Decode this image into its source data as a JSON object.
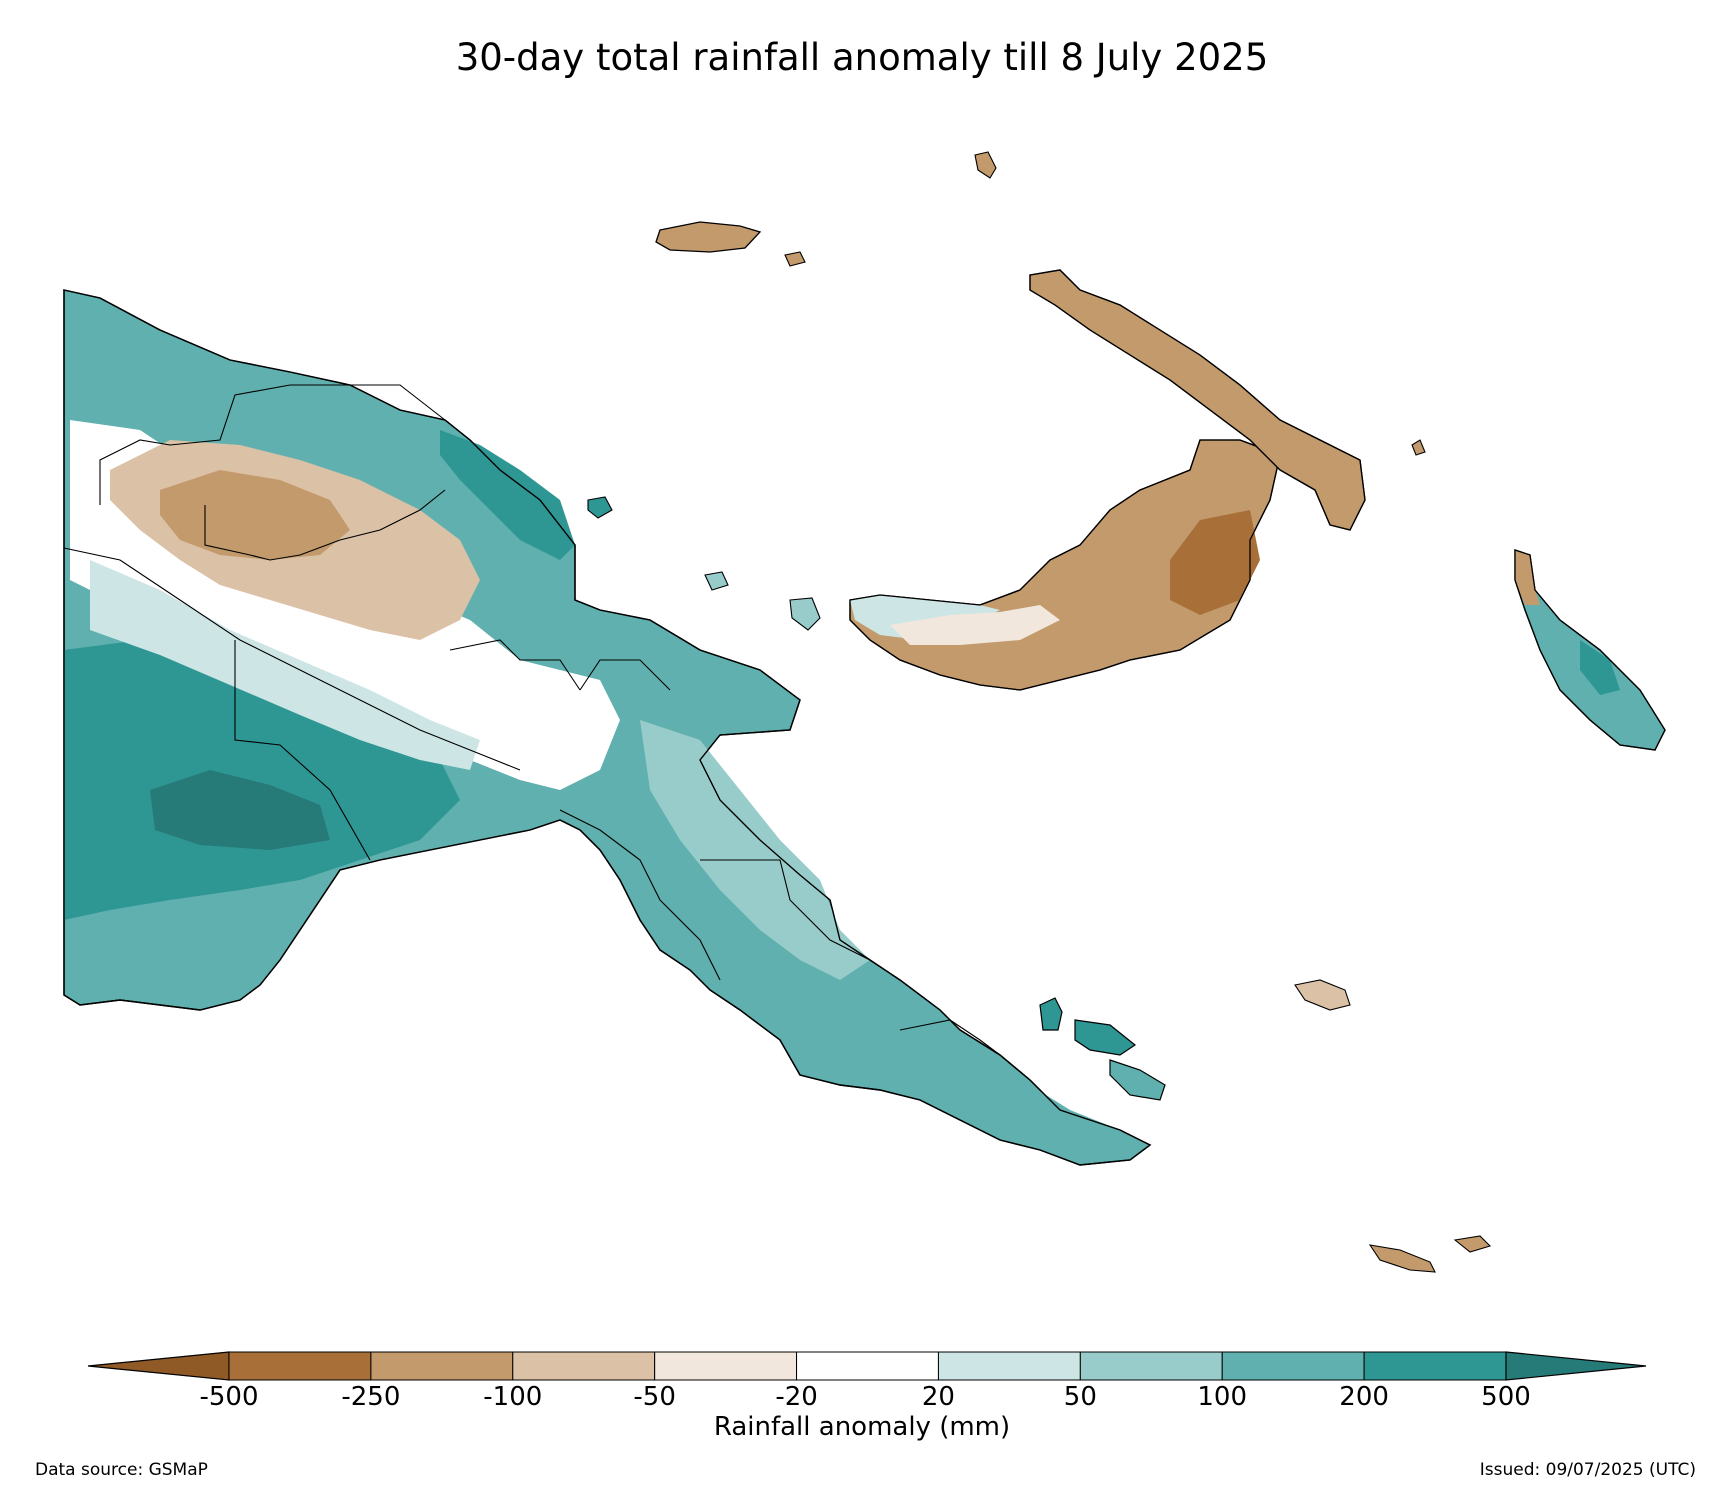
{
  "title": "30-day total rainfall anomaly till 8 July 2025",
  "colorbar": {
    "label": "Rainfall anomaly (mm)",
    "ticks": [
      "-500",
      "-250",
      "-100",
      "-50",
      "-20",
      "20",
      "50",
      "100",
      "200",
      "500"
    ],
    "colors": {
      "below_-500": "#8f5a26",
      "-500_-250": "#a86f38",
      "-250_-100": "#c39a6c",
      "-100_-50": "#dbc1a6",
      "-50_-20": "#f1e7dd",
      "-20_20": "#ffffff",
      "20_50": "#cde6e5",
      "50_100": "#98cccb",
      "100_200": "#5fb0ae",
      "200_500": "#2e9793",
      "above_500": "#267a78"
    }
  },
  "footer": {
    "source": "Data source: GSMaP",
    "issued": "Issued: 09/07/2025 (UTC)"
  }
}
